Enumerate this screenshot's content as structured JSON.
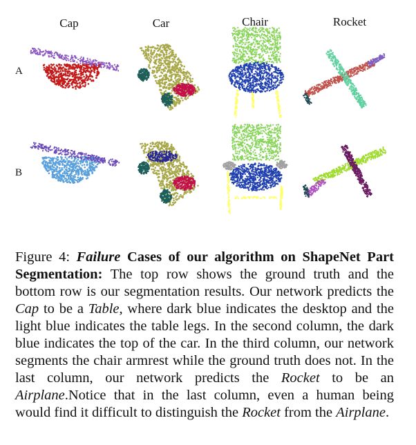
{
  "columns": [
    "Cap",
    "Car",
    "Chair",
    "Rocket"
  ],
  "rows": [
    "A",
    "B"
  ],
  "caption": {
    "label": "Figure 4:",
    "failure": "Failure",
    "bold_rest": " Cases of our algorithm on ShapeNet Part Segmentation:",
    "t1": " The top row shows the ground truth and the bottom row is our segmentation results. Our network predicts the ",
    "cap": "Cap",
    "t2": " to be a ",
    "table": "Table",
    "t3": ", where dark blue indicates the desktop and the light blue indicates the table legs. In the second column, the dark blue indicates the top of the car. In the third column, our network segments the chair armrest while the ground truth does not. In the last column, our network predicts the ",
    "rocket1": "Rocket",
    "t4": " to be an ",
    "airplane1": "Airplane",
    "t5": ".Notice that in the last column, even a human being would find it difficult to distinguish the ",
    "rocket2": "Rocket",
    "t6": " from the ",
    "airplane2": "Airplane",
    "t7": "."
  },
  "colors": {
    "cap_top": "#8a55c0",
    "cap_body_gt": "#c41a1a",
    "cap_body_pred": "#5aa0dc",
    "cap_top_pred": "#6a4ab8",
    "car_body": "#a8a84a",
    "car_wheel": "#1e5f5a",
    "car_hood": "#c4104a",
    "car_roof_pred": "#2a2a90",
    "chair_back": "#88d45a",
    "chair_seat": "#2040b0",
    "chair_legs": "#ffff66",
    "chair_arm_pred": "#a0a0a0",
    "rocket_body_gt": "#c0504a",
    "rocket_fins_gt": "#60d0a0",
    "rocket_tip_gt": "#8060c0",
    "rocket_body_pred": "#a0dc30",
    "rocket_fins_pred": "#6a1a60",
    "rocket_tip_pred": "#b050c0"
  }
}
